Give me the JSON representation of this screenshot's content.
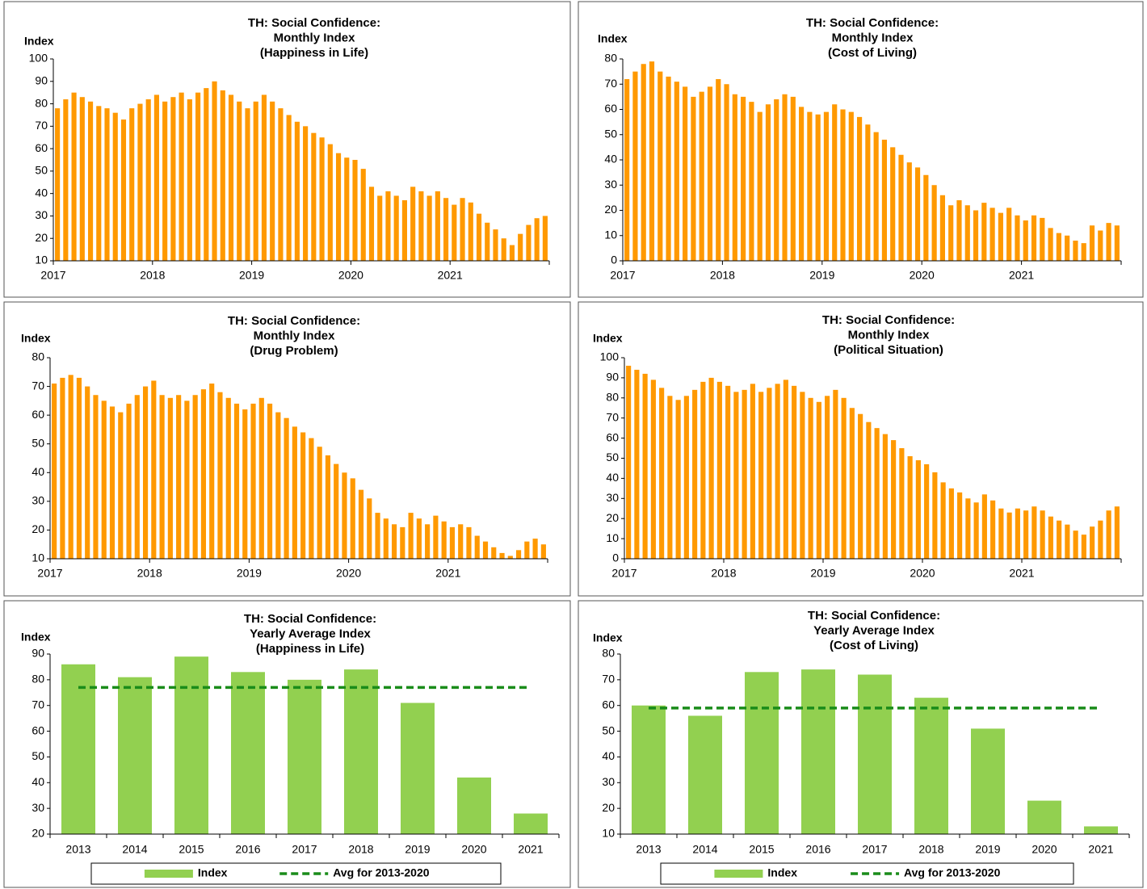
{
  "chart_data": [
    {
      "type": "bar",
      "title": [
        "TH: Social Confidence:",
        "Monthly Index",
        "(Happiness in Life)"
      ],
      "y_label": "Index",
      "categories": [
        "2017",
        null,
        null,
        null,
        null,
        null,
        null,
        null,
        null,
        null,
        null,
        null,
        "2018",
        null,
        null,
        null,
        null,
        null,
        null,
        null,
        null,
        null,
        null,
        null,
        "2019",
        null,
        null,
        null,
        null,
        null,
        null,
        null,
        null,
        null,
        null,
        null,
        "2020",
        null,
        null,
        null,
        null,
        null,
        null,
        null,
        null,
        null,
        null,
        null,
        "2021",
        null,
        null,
        null,
        null,
        null,
        null,
        null,
        null,
        null,
        null,
        null
      ],
      "values": [
        78,
        82,
        85,
        83,
        81,
        79,
        78,
        76,
        73,
        78,
        80,
        82,
        84,
        81,
        83,
        85,
        82,
        85,
        87,
        90,
        86,
        84,
        81,
        78,
        81,
        84,
        81,
        78,
        75,
        72,
        70,
        67,
        65,
        62,
        58,
        56,
        55,
        51,
        43,
        39,
        41,
        39,
        37,
        43,
        41,
        39,
        41,
        38,
        35,
        38,
        36,
        31,
        27,
        24,
        20,
        17,
        22,
        26,
        29,
        30
      ],
      "color": "#ff9900",
      "ylim": [
        10,
        100
      ],
      "yticks": [
        10,
        20,
        30,
        40,
        50,
        60,
        70,
        80,
        90,
        100
      ]
    },
    {
      "type": "bar",
      "title": [
        "TH: Social Confidence:",
        "Monthly Index",
        "(Cost of Living)"
      ],
      "y_label": "Index",
      "categories": [
        "2017",
        null,
        null,
        null,
        null,
        null,
        null,
        null,
        null,
        null,
        null,
        null,
        "2018",
        null,
        null,
        null,
        null,
        null,
        null,
        null,
        null,
        null,
        null,
        null,
        "2019",
        null,
        null,
        null,
        null,
        null,
        null,
        null,
        null,
        null,
        null,
        null,
        "2020",
        null,
        null,
        null,
        null,
        null,
        null,
        null,
        null,
        null,
        null,
        null,
        "2021",
        null,
        null,
        null,
        null,
        null,
        null,
        null,
        null,
        null,
        null,
        null
      ],
      "values": [
        72,
        75,
        78,
        79,
        75,
        73,
        71,
        69,
        65,
        67,
        69,
        72,
        70,
        66,
        65,
        63,
        59,
        62,
        64,
        66,
        65,
        61,
        59,
        58,
        59,
        62,
        60,
        59,
        57,
        54,
        51,
        48,
        45,
        42,
        39,
        37,
        34,
        30,
        26,
        22,
        24,
        22,
        20,
        23,
        21,
        19,
        21,
        18,
        16,
        18,
        17,
        13,
        11,
        10,
        8,
        7,
        14,
        12,
        15,
        14
      ],
      "color": "#ff9900",
      "ylim": [
        0,
        80
      ],
      "yticks": [
        0,
        10,
        20,
        30,
        40,
        50,
        60,
        70,
        80
      ]
    },
    {
      "type": "bar",
      "title": [
        "TH: Social Confidence:",
        "Monthly Index",
        "(Drug Problem)"
      ],
      "y_label": "Index",
      "categories": [
        "2017",
        null,
        null,
        null,
        null,
        null,
        null,
        null,
        null,
        null,
        null,
        null,
        "2018",
        null,
        null,
        null,
        null,
        null,
        null,
        null,
        null,
        null,
        null,
        null,
        "2019",
        null,
        null,
        null,
        null,
        null,
        null,
        null,
        null,
        null,
        null,
        null,
        "2020",
        null,
        null,
        null,
        null,
        null,
        null,
        null,
        null,
        null,
        null,
        null,
        "2021",
        null,
        null,
        null,
        null,
        null,
        null,
        null,
        null,
        null,
        null,
        null
      ],
      "values": [
        71,
        73,
        74,
        73,
        70,
        67,
        65,
        63,
        61,
        64,
        67,
        70,
        72,
        67,
        66,
        67,
        65,
        67,
        69,
        71,
        68,
        66,
        64,
        62,
        64,
        66,
        64,
        61,
        59,
        56,
        54,
        52,
        49,
        46,
        43,
        40,
        38,
        34,
        31,
        26,
        24,
        22,
        21,
        26,
        24,
        22,
        25,
        23,
        21,
        22,
        21,
        18,
        16,
        14,
        12,
        11,
        13,
        16,
        17,
        15
      ],
      "color": "#ff9900",
      "ylim": [
        10,
        80
      ],
      "yticks": [
        10,
        20,
        30,
        40,
        50,
        60,
        70,
        80
      ]
    },
    {
      "type": "bar",
      "title": [
        "TH: Social Confidence:",
        "Monthly Index",
        "(Political Situation)"
      ],
      "y_label": "Index",
      "categories": [
        "2017",
        null,
        null,
        null,
        null,
        null,
        null,
        null,
        null,
        null,
        null,
        null,
        "2018",
        null,
        null,
        null,
        null,
        null,
        null,
        null,
        null,
        null,
        null,
        null,
        "2019",
        null,
        null,
        null,
        null,
        null,
        null,
        null,
        null,
        null,
        null,
        null,
        "2020",
        null,
        null,
        null,
        null,
        null,
        null,
        null,
        null,
        null,
        null,
        null,
        "2021",
        null,
        null,
        null,
        null,
        null,
        null,
        null,
        null,
        null,
        null,
        null
      ],
      "values": [
        96,
        94,
        92,
        89,
        85,
        81,
        79,
        81,
        84,
        88,
        90,
        88,
        86,
        83,
        84,
        87,
        83,
        85,
        87,
        89,
        86,
        83,
        80,
        78,
        81,
        84,
        80,
        75,
        72,
        68,
        65,
        62,
        59,
        55,
        51,
        49,
        47,
        43,
        38,
        35,
        33,
        30,
        28,
        32,
        29,
        25,
        23,
        25,
        24,
        26,
        24,
        21,
        19,
        17,
        14,
        12,
        16,
        19,
        24,
        26
      ],
      "color": "#ff9900",
      "ylim": [
        0,
        100
      ],
      "yticks": [
        0,
        10,
        20,
        30,
        40,
        50,
        60,
        70,
        80,
        90,
        100
      ]
    },
    {
      "type": "combo",
      "title": [
        "TH: Social Confidence:",
        "Yearly Average Index",
        "(Happiness in Life)"
      ],
      "y_label": "Index",
      "categories": [
        "2013",
        "2014",
        "2015",
        "2016",
        "2017",
        "2018",
        "2019",
        "2020",
        "2021"
      ],
      "series": [
        {
          "name": "Index",
          "kind": "bar",
          "color": "#92d050",
          "values": [
            86,
            81,
            89,
            83,
            80,
            84,
            71,
            42,
            28
          ]
        },
        {
          "name": "Avg for 2013-2020",
          "kind": "line",
          "color": "#1a8c1a",
          "values": [
            77,
            77,
            77,
            77,
            77,
            77,
            77,
            77,
            77
          ]
        }
      ],
      "ylim": [
        20,
        90
      ],
      "yticks": [
        20,
        30,
        40,
        50,
        60,
        70,
        80,
        90
      ],
      "legend": "bottom"
    },
    {
      "type": "combo",
      "title": [
        "TH: Social Confidence:",
        "Yearly Average Index",
        "(Cost of Living)"
      ],
      "y_label": "Index",
      "categories": [
        "2013",
        "2014",
        "2015",
        "2016",
        "2017",
        "2018",
        "2019",
        "2020",
        "2021"
      ],
      "series": [
        {
          "name": "Index",
          "kind": "bar",
          "color": "#92d050",
          "values": [
            60,
            56,
            73,
            74,
            72,
            63,
            51,
            23,
            13
          ]
        },
        {
          "name": "Avg for 2013-2020",
          "kind": "line",
          "color": "#1a8c1a",
          "values": [
            59,
            59,
            59,
            59,
            59,
            59,
            59,
            59,
            59
          ]
        }
      ],
      "ylim": [
        10,
        80
      ],
      "yticks": [
        10,
        20,
        30,
        40,
        50,
        60,
        70,
        80
      ],
      "legend": "bottom"
    }
  ]
}
